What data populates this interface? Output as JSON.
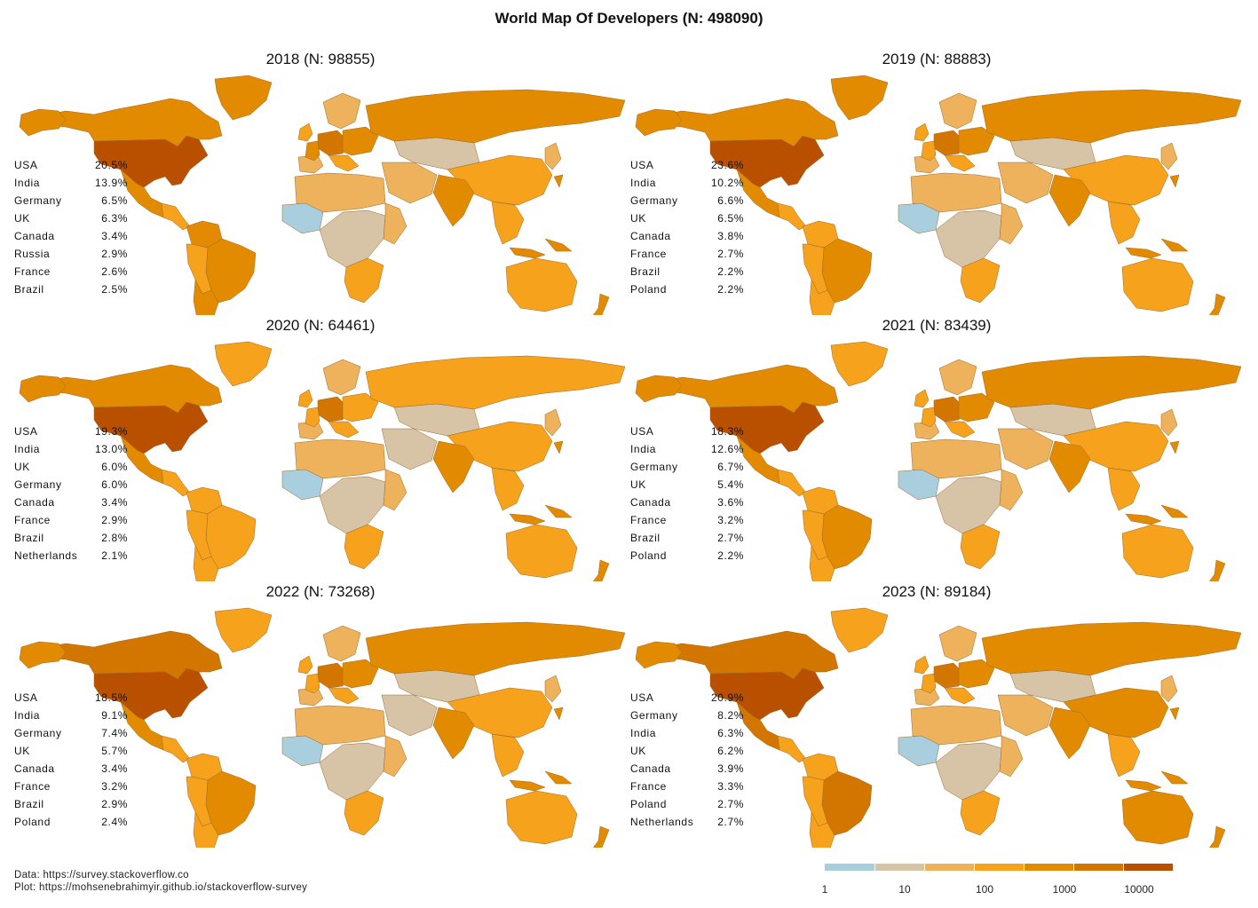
{
  "title": "World Map Of Developers (N: 498090)",
  "colors": {
    "c1": "#a9cfdf",
    "c2": "#d7c4a6",
    "c3": "#edb25b",
    "c4": "#f7a21c",
    "c5": "#e38b00",
    "c6": "#d27600",
    "c7": "#b95000",
    "land_border": "#9a6a2a",
    "ocean": "#ffffff"
  },
  "panels": [
    {
      "title": "2018 (N: 98855)",
      "colors": [
        "c7",
        "c5",
        "c5",
        "c5",
        "c5",
        "c4",
        "c5",
        "c5",
        "c4",
        "c5",
        "c4",
        "c3",
        "c6",
        "c5",
        "c3",
        "c5",
        "c4",
        "c3",
        "c1",
        "c2",
        "c3",
        "c4",
        "c3",
        "c2",
        "c5",
        "c4",
        "c4",
        "c5",
        "c3",
        "c4"
      ],
      "ranking": [
        {
          "country": "USA",
          "pct": "20.5%"
        },
        {
          "country": "India",
          "pct": "13.9%"
        },
        {
          "country": "Germany",
          "pct": "6.5%"
        },
        {
          "country": "UK",
          "pct": "6.3%"
        },
        {
          "country": "Canada",
          "pct": "3.4%"
        },
        {
          "country": "Russia",
          "pct": "2.9%"
        },
        {
          "country": "France",
          "pct": "2.6%"
        },
        {
          "country": "Brazil",
          "pct": "2.5%"
        }
      ]
    },
    {
      "title": "2019 (N: 88883)",
      "colors": [
        "c7",
        "c5",
        "c5",
        "c5",
        "c5",
        "c4",
        "c4",
        "c5",
        "c4",
        "c4",
        "c4",
        "c3",
        "c6",
        "c4",
        "c3",
        "c5",
        "c4",
        "c3",
        "c1",
        "c2",
        "c3",
        "c4",
        "c3",
        "c2",
        "c5",
        "c4",
        "c4",
        "c5",
        "c3",
        "c4"
      ],
      "ranking": [
        {
          "country": "USA",
          "pct": "23.6%"
        },
        {
          "country": "India",
          "pct": "10.2%"
        },
        {
          "country": "Germany",
          "pct": "6.6%"
        },
        {
          "country": "UK",
          "pct": "6.5%"
        },
        {
          "country": "Canada",
          "pct": "3.8%"
        },
        {
          "country": "France",
          "pct": "2.7%"
        },
        {
          "country": "Brazil",
          "pct": "2.2%"
        },
        {
          "country": "Poland",
          "pct": "2.2%"
        }
      ]
    },
    {
      "title": "2020 (N: 64461)",
      "colors": [
        "c7",
        "c5",
        "c5",
        "c4",
        "c5",
        "c4",
        "c4",
        "c4",
        "c4",
        "c4",
        "c4",
        "c3",
        "c6",
        "c4",
        "c3",
        "c4",
        "c4",
        "c3",
        "c1",
        "c2",
        "c3",
        "c4",
        "c2",
        "c2",
        "c4",
        "c4",
        "c4",
        "c5",
        "c3",
        "c4"
      ],
      "ranking": [
        {
          "country": "USA",
          "pct": "19.3%"
        },
        {
          "country": "India",
          "pct": "13.0%"
        },
        {
          "country": "UK",
          "pct": "6.0%"
        },
        {
          "country": "Germany",
          "pct": "6.0%"
        },
        {
          "country": "Canada",
          "pct": "3.4%"
        },
        {
          "country": "France",
          "pct": "2.9%"
        },
        {
          "country": "Brazil",
          "pct": "2.8%"
        },
        {
          "country": "Netherlands",
          "pct": "2.1%"
        }
      ]
    },
    {
      "title": "2021 (N: 83439)",
      "colors": [
        "c7",
        "c5",
        "c5",
        "c4",
        "c5",
        "c4",
        "c4",
        "c5",
        "c4",
        "c4",
        "c4",
        "c3",
        "c6",
        "c4",
        "c3",
        "c5",
        "c4",
        "c3",
        "c1",
        "c2",
        "c3",
        "c4",
        "c3",
        "c2",
        "c5",
        "c4",
        "c4",
        "c5",
        "c3",
        "c4"
      ],
      "ranking": [
        {
          "country": "USA",
          "pct": "18.3%"
        },
        {
          "country": "India",
          "pct": "12.6%"
        },
        {
          "country": "Germany",
          "pct": "6.7%"
        },
        {
          "country": "UK",
          "pct": "5.4%"
        },
        {
          "country": "Canada",
          "pct": "3.6%"
        },
        {
          "country": "France",
          "pct": "3.2%"
        },
        {
          "country": "Brazil",
          "pct": "2.7%"
        },
        {
          "country": "Poland",
          "pct": "2.2%"
        }
      ]
    },
    {
      "title": "2022 (N: 73268)",
      "colors": [
        "c7",
        "c6",
        "c5",
        "c4",
        "c5",
        "c4",
        "c4",
        "c5",
        "c4",
        "c4",
        "c4",
        "c3",
        "c6",
        "c4",
        "c3",
        "c5",
        "c4",
        "c3",
        "c1",
        "c2",
        "c3",
        "c4",
        "c2",
        "c2",
        "c5",
        "c4",
        "c4",
        "c5",
        "c3",
        "c4"
      ],
      "ranking": [
        {
          "country": "USA",
          "pct": "18.5%"
        },
        {
          "country": "India",
          "pct": "9.1%"
        },
        {
          "country": "Germany",
          "pct": "7.4%"
        },
        {
          "country": "UK",
          "pct": "5.7%"
        },
        {
          "country": "Canada",
          "pct": "3.4%"
        },
        {
          "country": "France",
          "pct": "3.2%"
        },
        {
          "country": "Brazil",
          "pct": "2.9%"
        },
        {
          "country": "Poland",
          "pct": "2.4%"
        }
      ]
    },
    {
      "title": "2023 (N: 89184)",
      "colors": [
        "c7",
        "c6",
        "c5",
        "c4",
        "c6",
        "c4",
        "c4",
        "c6",
        "c4",
        "c4",
        "c4",
        "c3",
        "c6",
        "c4",
        "c3",
        "c5",
        "c4",
        "c3",
        "c1",
        "c2",
        "c3",
        "c4",
        "c3",
        "c2",
        "c5",
        "c5",
        "c4",
        "c5",
        "c3",
        "c5"
      ],
      "ranking": [
        {
          "country": "USA",
          "pct": "20.9%"
        },
        {
          "country": "Germany",
          "pct": "8.2%"
        },
        {
          "country": "India",
          "pct": "6.3%"
        },
        {
          "country": "UK",
          "pct": "6.2%"
        },
        {
          "country": "Canada",
          "pct": "3.9%"
        },
        {
          "country": "France",
          "pct": "3.3%"
        },
        {
          "country": "Poland",
          "pct": "2.7%"
        },
        {
          "country": "Netherlands",
          "pct": "2.7%"
        }
      ]
    }
  ],
  "legend": {
    "ticks": [
      "1",
      "10",
      "100",
      "1000",
      "10000"
    ],
    "segments": [
      "c1",
      "c2",
      "c3",
      "c4",
      "c5",
      "c6",
      "c7"
    ]
  },
  "caption": {
    "data_line": "Data: https://survey.stackoverflow.co",
    "plot_line": "Plot: https://mohsenebrahimyir.github.io/stackoverflow-survey"
  }
}
